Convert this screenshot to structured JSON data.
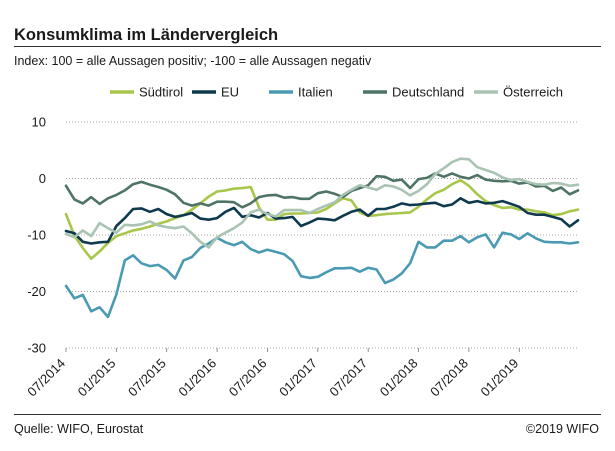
{
  "header": {
    "title": "Konsumklima im Ländervergleich",
    "subtitle": "Index: 100 = alle Aussagen positiv; -100 =  alle Aussagen negativ"
  },
  "footer": {
    "source": "Quelle: WIFO, Eurostat",
    "copyright": "©2019 WIFO"
  },
  "chart_data": {
    "type": "line",
    "title": "Konsumklima im Ländervergleich",
    "xlabel": "",
    "ylabel": "",
    "ylim": [
      -30,
      10
    ],
    "y_ticks": [
      "10",
      "0",
      "-10",
      "-20",
      "-30"
    ],
    "x_tick_labels": [
      "07/2014",
      "01/2015",
      "07/2015",
      "01/2016",
      "07/2016",
      "01/2017",
      "07/2017",
      "01/2018",
      "07/2018",
      "01/2019"
    ],
    "x_start": "2014-07",
    "grid": "horizontal",
    "legend_position": "top",
    "series": [
      {
        "name": "Südtirol",
        "color": "#a8c64a",
        "values": [
          -6.3,
          -10.1,
          -12.3,
          -14.2,
          -12.9,
          -11.4,
          -10.2,
          -9.7,
          -9.2,
          -8.9,
          -8.5,
          -8.0,
          -7.6,
          -7.0,
          -6.5,
          -5.5,
          -4.4,
          -3.2,
          -2.3,
          -2.1,
          -1.8,
          -1.7,
          -1.5,
          -5.1,
          -7.3,
          -7.3,
          -6.3,
          -6.2,
          -6.2,
          -6.1,
          -6.0,
          -5.4,
          -4.4,
          -3.5,
          -3.9,
          -6.0,
          -6.6,
          -6.5,
          -6.3,
          -6.2,
          -6.1,
          -6.0,
          -5.0,
          -3.7,
          -2.6,
          -2.0,
          -1.0,
          -0.3,
          -1.3,
          -2.8,
          -4.0,
          -4.7,
          -5.2,
          -5.1,
          -5.5,
          -5.5,
          -5.8,
          -6.0,
          -6.5,
          -6.3,
          -5.8,
          -5.5
        ]
      },
      {
        "name": "EU",
        "color": "#0f3a4e",
        "values": [
          -9.3,
          -9.7,
          -11.2,
          -11.5,
          -11.3,
          -11.2,
          -8.4,
          -7.0,
          -5.4,
          -5.3,
          -5.9,
          -5.4,
          -6.3,
          -6.8,
          -6.5,
          -6.1,
          -7.1,
          -7.3,
          -7.0,
          -5.9,
          -5.2,
          -6.8,
          -6.5,
          -6.9,
          -6.1,
          -7.1,
          -7.0,
          -6.8,
          -8.4,
          -7.8,
          -7.1,
          -7.2,
          -7.4,
          -6.6,
          -5.9,
          -5.5,
          -6.6,
          -5.4,
          -5.4,
          -5.0,
          -4.4,
          -4.7,
          -4.6,
          -4.4,
          -4.3,
          -4.9,
          -4.6,
          -3.5,
          -4.3,
          -4.0,
          -4.4,
          -4.3,
          -4.0,
          -4.5,
          -5.0,
          -6.1,
          -6.4,
          -6.4,
          -6.8,
          -7.2,
          -8.5,
          -7.4
        ]
      },
      {
        "name": "Italien",
        "color": "#4a9ab4",
        "values": [
          -19.0,
          -21.2,
          -20.6,
          -23.5,
          -22.8,
          -24.5,
          -20.5,
          -14.5,
          -13.6,
          -15.0,
          -15.5,
          -15.3,
          -16.2,
          -17.7,
          -14.5,
          -13.9,
          -12.3,
          -11.5,
          -10.5,
          -11.3,
          -11.8,
          -11.2,
          -12.5,
          -13.1,
          -12.6,
          -13.0,
          -13.4,
          -14.6,
          -17.3,
          -17.6,
          -17.4,
          -16.6,
          -15.9,
          -15.9,
          -15.8,
          -16.5,
          -15.8,
          -16.1,
          -18.5,
          -17.9,
          -16.8,
          -15.0,
          -11.2,
          -12.2,
          -12.2,
          -11.0,
          -11.0,
          -10.2,
          -11.3,
          -10.4,
          -9.9,
          -12.2,
          -9.6,
          -9.9,
          -10.7,
          -9.7,
          -10.6,
          -11.2,
          -11.3,
          -11.3,
          -11.5,
          -11.3
        ]
      },
      {
        "name": "Deutschland",
        "color": "#4e7466",
        "values": [
          -1.3,
          -3.7,
          -4.4,
          -3.3,
          -4.5,
          -3.5,
          -2.9,
          -2.1,
          -1.0,
          -0.6,
          -1.1,
          -1.5,
          -2.0,
          -2.8,
          -4.3,
          -4.8,
          -4.4,
          -4.8,
          -4.1,
          -4.1,
          -4.2,
          -5.1,
          -4.4,
          -3.3,
          -3.0,
          -2.9,
          -3.4,
          -3.3,
          -3.6,
          -3.6,
          -2.6,
          -2.3,
          -2.7,
          -3.3,
          -2.2,
          -1.7,
          -1.2,
          0.4,
          0.3,
          -0.4,
          -0.2,
          -1.7,
          -0.1,
          0.1,
          0.9,
          0.3,
          0.9,
          0.3,
          0.0,
          0.6,
          -0.2,
          -0.4,
          -0.5,
          -0.4,
          -0.9,
          -0.7,
          -1.4,
          -1.3,
          -2.2,
          -1.6,
          -2.8,
          -2.1
        ]
      },
      {
        "name": "Österreich",
        "color": "#a9c4b3",
        "values": [
          -9.8,
          -10.4,
          -9.2,
          -10.2,
          -7.9,
          -8.8,
          -9.6,
          -8.2,
          -8.3,
          -8.1,
          -7.6,
          -8.3,
          -8.6,
          -8.8,
          -8.5,
          -9.7,
          -11.2,
          -12.2,
          -10.4,
          -9.6,
          -8.8,
          -7.8,
          -6.0,
          -5.5,
          -6.3,
          -6.7,
          -5.6,
          -5.6,
          -5.6,
          -6.1,
          -5.4,
          -4.8,
          -4.2,
          -2.9,
          -2.0,
          -1.2,
          -1.6,
          -2.0,
          -1.2,
          -1.4,
          -2.0,
          -3.0,
          -2.2,
          -1.0,
          0.8,
          1.8,
          2.9,
          3.5,
          3.4,
          2.0,
          1.5,
          1.0,
          0.2,
          -0.3,
          -0.1,
          -0.6,
          -1.0,
          -1.1,
          -0.8,
          -0.9,
          -1.3,
          -1.1
        ]
      }
    ]
  }
}
